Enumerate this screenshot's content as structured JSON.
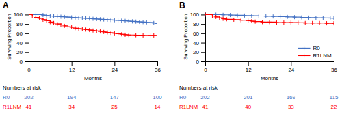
{
  "chart_data": [
    {
      "type": "step",
      "title": "A",
      "x_label": "Months",
      "y_label": "Surviving Proportion",
      "xlim": [
        0,
        36
      ],
      "ylim": [
        0,
        105
      ],
      "xticks": [
        0,
        12,
        24,
        36
      ],
      "yticks": [
        0,
        20,
        40,
        60,
        80,
        100
      ],
      "series": [
        {
          "name": "R0",
          "color": "#4472C4",
          "marker": "plus",
          "x": [
            0,
            2,
            4,
            5,
            6,
            7,
            8,
            9,
            10,
            11,
            12,
            13,
            14,
            15,
            16,
            17,
            18,
            19,
            20,
            21,
            22,
            23,
            24,
            25,
            26,
            27,
            28,
            29,
            30,
            31,
            32,
            33,
            34,
            35,
            36
          ],
          "values": [
            100,
            100,
            99,
            98,
            97,
            96.5,
            96,
            95.5,
            95,
            94.5,
            94,
            93.5,
            93,
            92.5,
            92,
            91.5,
            91,
            90.5,
            90,
            89.5,
            89,
            88.5,
            88,
            87.5,
            87,
            86.5,
            86,
            85.5,
            85,
            84.5,
            84,
            83.5,
            83,
            82,
            81
          ]
        },
        {
          "name": "R1LNM",
          "color": "#FF0000",
          "marker": "plus",
          "x": [
            0,
            1,
            2,
            3,
            4,
            5,
            6,
            7,
            8,
            9,
            10,
            11,
            12,
            13,
            14,
            15,
            16,
            17,
            18,
            19,
            20,
            21,
            22,
            23,
            24,
            25,
            26,
            27,
            28,
            30,
            32,
            34,
            35,
            36
          ],
          "values": [
            100,
            97,
            94,
            92,
            89,
            87,
            84,
            82,
            80,
            78,
            76,
            74,
            73,
            71,
            70,
            69,
            68,
            67,
            66,
            65,
            64,
            63,
            62,
            61,
            60,
            59,
            58,
            57,
            56.5,
            56,
            55.5,
            55.5,
            55.5,
            55
          ]
        }
      ],
      "numbers_at_risk": {
        "label": "Numbers at risk",
        "timepoints": [
          0,
          12,
          24,
          36
        ],
        "rows": [
          {
            "name": "R0",
            "values": [
              202,
              194,
              147,
              100
            ]
          },
          {
            "name": "R1LNM",
            "values": [
              41,
              34,
              25,
              14
            ]
          }
        ]
      }
    },
    {
      "type": "step",
      "title": "B",
      "x_label": "Months",
      "y_label": "Surviving Proportion",
      "xlim": [
        0,
        36
      ],
      "ylim": [
        0,
        105
      ],
      "xticks": [
        0,
        12,
        24,
        36
      ],
      "yticks": [
        0,
        20,
        40,
        60,
        80,
        100
      ],
      "legend": "lower right",
      "series": [
        {
          "name": "R0",
          "color": "#4472C4",
          "marker": "plus",
          "x": [
            0,
            3,
            5,
            7,
            9,
            11,
            13,
            15,
            17,
            19,
            21,
            23,
            25,
            27,
            29,
            31,
            33,
            35,
            36
          ],
          "values": [
            100,
            100,
            99.5,
            99,
            98.5,
            98,
            97.5,
            97,
            96.5,
            96,
            95.5,
            95,
            94.5,
            94,
            93.5,
            93.2,
            92.9,
            92.5,
            92.3
          ]
        },
        {
          "name": "R1LNM",
          "color": "#FF0000",
          "marker": "plus",
          "x": [
            0,
            2,
            3,
            4,
            5,
            6,
            8,
            10,
            12,
            13,
            14,
            16,
            18,
            20,
            22,
            24,
            26,
            28,
            30,
            32,
            34,
            36
          ],
          "values": [
            100,
            97,
            95,
            93,
            91,
            90,
            89,
            88,
            87,
            86,
            85,
            84,
            84,
            83,
            83,
            83,
            82.5,
            82,
            82,
            82,
            81.5,
            81.5
          ]
        }
      ],
      "numbers_at_risk": {
        "label": "Numbers at risk",
        "timepoints": [
          0,
          12,
          24,
          36
        ],
        "rows": [
          {
            "name": "R0",
            "values": [
              202,
              201,
              169,
              115
            ]
          },
          {
            "name": "R1LNM",
            "values": [
              41,
              40,
              33,
              22
            ]
          }
        ]
      }
    }
  ]
}
